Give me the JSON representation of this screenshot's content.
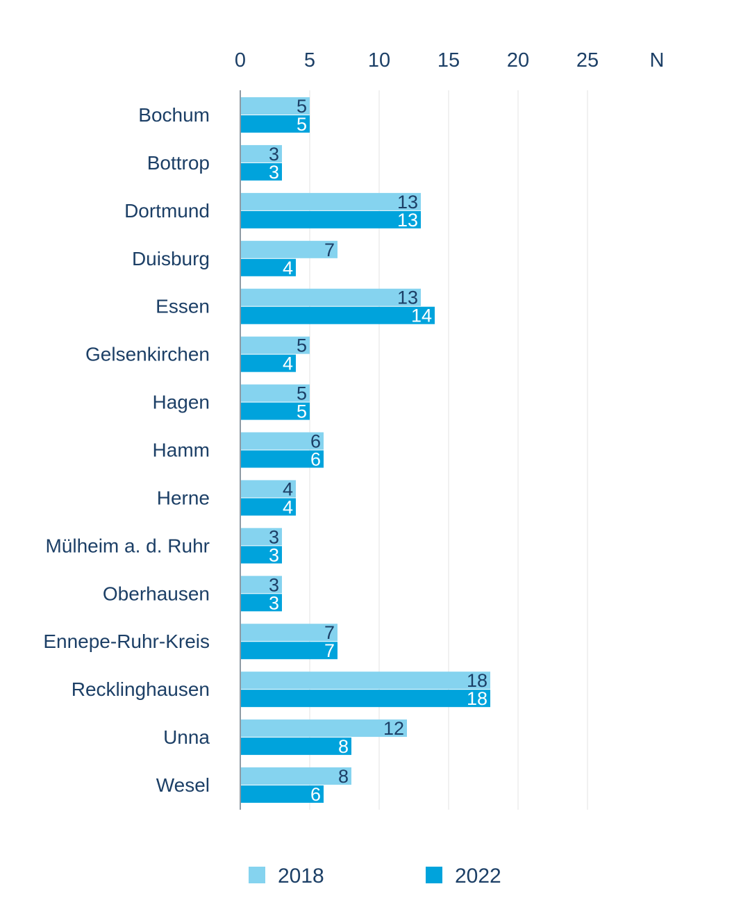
{
  "chart_data": {
    "type": "bar",
    "orientation": "horizontal",
    "categories": [
      "Bochum",
      "Bottrop",
      "Dortmund",
      "Duisburg",
      "Essen",
      "Gelsenkirchen",
      "Hagen",
      "Hamm",
      "Herne",
      "Mülheim a. d. Ruhr",
      "Oberhausen",
      "Ennepe-Ruhr-Kreis",
      "Recklinghausen",
      "Unna",
      "Wesel"
    ],
    "series": [
      {
        "name": "2018",
        "values": [
          5,
          3,
          13,
          7,
          13,
          5,
          5,
          6,
          4,
          3,
          3,
          7,
          18,
          12,
          8
        ],
        "color": "#85d3ef",
        "label_color": "#1c3f66"
      },
      {
        "name": "2022",
        "values": [
          5,
          3,
          13,
          4,
          14,
          4,
          5,
          6,
          4,
          3,
          3,
          7,
          18,
          8,
          6
        ],
        "color": "#00a3dc",
        "label_color": "#ffffff"
      }
    ],
    "x_ticks": [
      "0",
      "5",
      "10",
      "15",
      "20",
      "25"
    ],
    "x_unit_label": "N",
    "xlim": [
      0,
      30
    ],
    "grid": true,
    "legend_position": "bottom"
  }
}
